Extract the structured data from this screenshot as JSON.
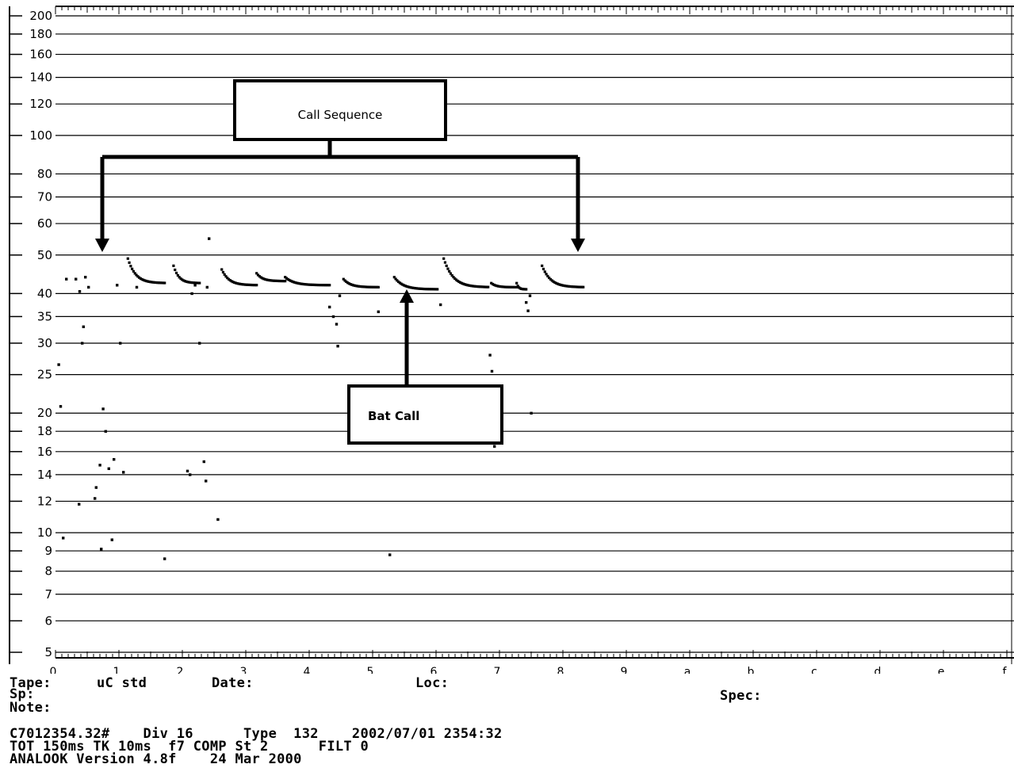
{
  "chart_data": {
    "type": "scatter",
    "title": "",
    "xlabel": "",
    "ylabel": "",
    "y_scale": "log",
    "ylim": [
      5,
      200
    ],
    "xlim": [
      0,
      15
    ],
    "grid": true,
    "y_ticks": [
      5,
      6,
      7,
      8,
      9,
      10,
      12,
      14,
      16,
      18,
      20,
      25,
      30,
      35,
      40,
      50,
      60,
      70,
      80,
      100,
      120,
      140,
      160,
      180,
      200
    ],
    "y_tick_labels": [
      "5",
      "6",
      "7",
      "8",
      "9",
      "10",
      "12",
      "14",
      "16",
      "18",
      "20",
      "25",
      "30",
      "35",
      "40",
      "50",
      "60",
      "70",
      "80",
      "100",
      "120",
      "140",
      "160",
      "180",
      "200"
    ],
    "x_ticks": [
      0,
      1,
      2,
      3,
      4,
      5,
      6,
      7,
      8,
      9,
      10,
      11,
      12,
      13,
      14,
      15
    ],
    "x_tick_labels": [
      "0",
      "1",
      "2",
      "3",
      "4",
      "5",
      "6",
      "7",
      "8",
      "9",
      "a",
      "b",
      "c",
      "d",
      "e",
      "f"
    ],
    "call_groups": [
      {
        "x_start": 1.14,
        "x_end": 1.72,
        "f_start": 49,
        "f_end": 42.5
      },
      {
        "x_start": 1.86,
        "x_end": 2.27,
        "f_start": 47,
        "f_end": 42.5
      },
      {
        "x_start": 2.62,
        "x_end": 3.17,
        "f_start": 46,
        "f_end": 42
      },
      {
        "x_start": 3.17,
        "x_end": 3.62,
        "f_start": 45,
        "f_end": 43
      },
      {
        "x_start": 3.62,
        "x_end": 4.32,
        "f_start": 44,
        "f_end": 42
      },
      {
        "x_start": 4.54,
        "x_end": 5.09,
        "f_start": 43.5,
        "f_end": 41.5
      },
      {
        "x_start": 5.34,
        "x_end": 6.02,
        "f_start": 44,
        "f_end": 41
      },
      {
        "x_start": 6.12,
        "x_end": 6.82,
        "f_start": 49,
        "f_end": 41.5
      },
      {
        "x_start": 6.87,
        "x_end": 7.27,
        "f_start": 42.5,
        "f_end": 41.5
      },
      {
        "x_start": 7.27,
        "x_end": 7.42,
        "f_start": 42.5,
        "f_end": 41
      },
      {
        "x_start": 7.67,
        "x_end": 8.32,
        "f_start": 47,
        "f_end": 41.5
      }
    ],
    "noise_points": [
      {
        "x": 0.05,
        "y": 26.5
      },
      {
        "x": 0.08,
        "y": 20.8
      },
      {
        "x": 0.12,
        "y": 9.7
      },
      {
        "x": 0.17,
        "y": 43.5
      },
      {
        "x": 0.32,
        "y": 43.5
      },
      {
        "x": 0.37,
        "y": 11.8
      },
      {
        "x": 0.38,
        "y": 40.5
      },
      {
        "x": 0.42,
        "y": 30
      },
      {
        "x": 0.44,
        "y": 33
      },
      {
        "x": 0.47,
        "y": 44
      },
      {
        "x": 0.52,
        "y": 41.5
      },
      {
        "x": 0.62,
        "y": 12.2
      },
      {
        "x": 0.64,
        "y": 13
      },
      {
        "x": 0.7,
        "y": 14.8
      },
      {
        "x": 0.72,
        "y": 9.1
      },
      {
        "x": 0.75,
        "y": 20.5
      },
      {
        "x": 0.79,
        "y": 18
      },
      {
        "x": 0.84,
        "y": 14.5
      },
      {
        "x": 0.89,
        "y": 9.6
      },
      {
        "x": 0.92,
        "y": 15.3
      },
      {
        "x": 0.97,
        "y": 42
      },
      {
        "x": 1.02,
        "y": 30
      },
      {
        "x": 1.07,
        "y": 14.2
      },
      {
        "x": 1.28,
        "y": 41.5
      },
      {
        "x": 1.72,
        "y": 8.6
      },
      {
        "x": 2.08,
        "y": 14.3
      },
      {
        "x": 2.12,
        "y": 14
      },
      {
        "x": 2.15,
        "y": 40
      },
      {
        "x": 2.2,
        "y": 42
      },
      {
        "x": 2.27,
        "y": 30
      },
      {
        "x": 2.34,
        "y": 15.1
      },
      {
        "x": 2.37,
        "y": 13.5
      },
      {
        "x": 2.39,
        "y": 41.5
      },
      {
        "x": 2.42,
        "y": 55
      },
      {
        "x": 2.56,
        "y": 10.8
      },
      {
        "x": 4.32,
        "y": 37
      },
      {
        "x": 4.38,
        "y": 35
      },
      {
        "x": 4.43,
        "y": 33.5
      },
      {
        "x": 4.45,
        "y": 29.5
      },
      {
        "x": 4.48,
        "y": 39.5
      },
      {
        "x": 5.09,
        "y": 36
      },
      {
        "x": 5.27,
        "y": 8.8
      },
      {
        "x": 6.07,
        "y": 37.5
      },
      {
        "x": 6.85,
        "y": 28
      },
      {
        "x": 6.88,
        "y": 25.5
      },
      {
        "x": 6.92,
        "y": 16.5
      },
      {
        "x": 7.42,
        "y": 38
      },
      {
        "x": 7.45,
        "y": 36.2
      },
      {
        "x": 7.48,
        "y": 39.5
      },
      {
        "x": 7.5,
        "y": 20
      }
    ],
    "annotations": [
      {
        "label": "Call Sequence"
      },
      {
        "label": "Bat Call"
      }
    ]
  },
  "info": {
    "tape_label": "Tape:",
    "tape_value": "uC std",
    "date_label": "Date:",
    "loc_label": "Loc:",
    "sp_label": "Sp:",
    "spec_label": "Spec:",
    "note_label": "Note:",
    "line1": "C7012354.32#    Div 16      Type  132    2002/07/01 2354:32",
    "line2": "TOT 150ms TK 10ms  f7 COMP St 2      FILT 0",
    "line3": "ANALOOK Version 4.8f    24 Mar 2000"
  }
}
